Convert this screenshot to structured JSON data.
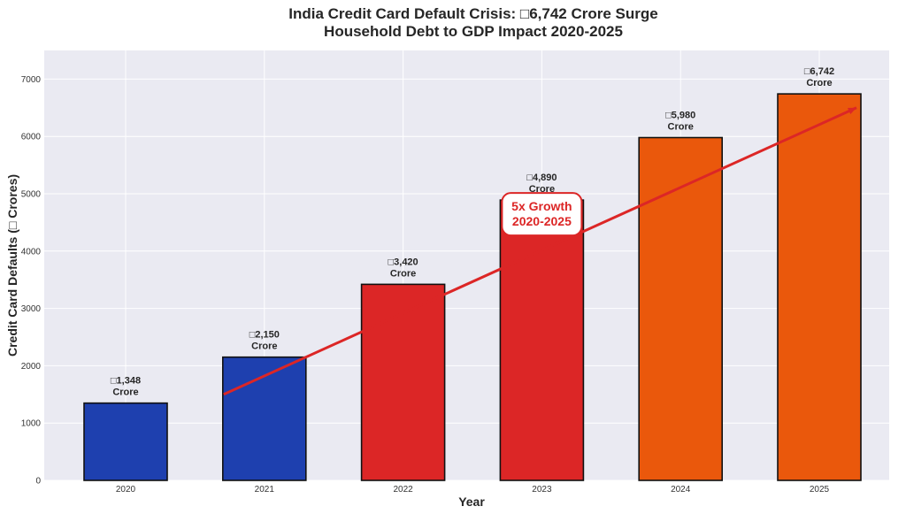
{
  "chart_data": {
    "type": "bar",
    "title": [
      "India Credit Card Default Crisis: □6,742 Crore Surge",
      "Household Debt to GDP Impact 2020-2025"
    ],
    "xlabel": "Year",
    "ylabel": "Credit Card Defaults (□ Crores)",
    "categories": [
      "2020",
      "2021",
      "2022",
      "2023",
      "2024",
      "2025"
    ],
    "values": [
      1348,
      2150,
      3420,
      4890,
      5980,
      6742
    ],
    "data_labels": [
      [
        "□1,348",
        "Crore"
      ],
      [
        "□2,150",
        "Crore"
      ],
      [
        "□3,420",
        "Crore"
      ],
      [
        "□4,890",
        "Crore"
      ],
      [
        "□5,980",
        "Crore"
      ],
      [
        "□6,742",
        "Crore"
      ]
    ],
    "bar_colors": [
      "#1e40af",
      "#1e40af",
      "#dc2626",
      "#dc2626",
      "#ea580c",
      "#ea580c"
    ],
    "ylim": [
      0,
      7500
    ],
    "yticks": [
      0,
      1000,
      2000,
      3000,
      4000,
      5000,
      6000,
      7000
    ],
    "grid": true,
    "background": "#eaeaf2",
    "trend_arrow": {
      "from": [
        "2021",
        1500
      ],
      "to": [
        "2025",
        6500
      ],
      "color": "#dc2626"
    },
    "annotation": {
      "lines": [
        "5x Growth",
        "2020-2025"
      ],
      "color": "#dc2626",
      "at": [
        "2023",
        4550
      ]
    }
  }
}
